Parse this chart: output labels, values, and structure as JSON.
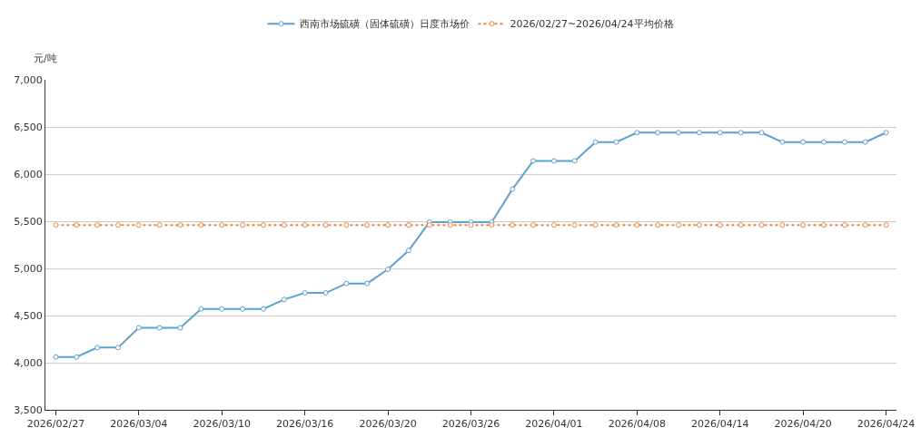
{
  "chart_data": {
    "type": "line",
    "ylabel": "元/吨",
    "categories": [
      "2026/02/27",
      null,
      null,
      null,
      "2026/03/04",
      null,
      null,
      null,
      "2026/03/10",
      null,
      null,
      null,
      "2026/03/16",
      null,
      null,
      null,
      "2026/03/20",
      null,
      null,
      null,
      "2026/03/26",
      null,
      null,
      null,
      "2026/04/01",
      null,
      null,
      null,
      "2026/04/08",
      null,
      null,
      null,
      "2026/04/14",
      null,
      null,
      null,
      "2026/04/20",
      null,
      null,
      null,
      "2026/04/24"
    ],
    "series": [
      {
        "name": "西南市场硫磺（固体硫磺）日度市场价",
        "color": "#5ba3cc",
        "line_style": "solid",
        "values": [
          4060,
          4060,
          4160,
          4160,
          4370,
          4370,
          4370,
          4570,
          4570,
          4570,
          4570,
          4670,
          4740,
          4740,
          4840,
          4840,
          4990,
          5190,
          5490,
          5490,
          5490,
          5490,
          5840,
          6140,
          6140,
          6140,
          6340,
          6340,
          6440,
          6440,
          6440,
          6440,
          6440,
          6440,
          6440,
          6340,
          6340,
          6340,
          6340,
          6340,
          6440
        ]
      },
      {
        "name": "2026/02/27~2026/04/24平均价格",
        "color": "#e8883f",
        "line_style": "dotted",
        "values": [
          5460,
          5460,
          5460,
          5460,
          5460,
          5460,
          5460,
          5460,
          5460,
          5460,
          5460,
          5460,
          5460,
          5460,
          5460,
          5460,
          5460,
          5460,
          5460,
          5460,
          5460,
          5460,
          5460,
          5460,
          5460,
          5460,
          5460,
          5460,
          5460,
          5460,
          5460,
          5460,
          5460,
          5460,
          5460,
          5460,
          5460,
          5460,
          5460,
          5460,
          5460
        ]
      }
    ],
    "ylim": [
      3500,
      7000
    ],
    "yticks": [
      {
        "value": 3500,
        "label": "3,500"
      },
      {
        "value": 4000,
        "label": "4,000"
      },
      {
        "value": 4500,
        "label": "4,500"
      },
      {
        "value": 5000,
        "label": "5,000"
      },
      {
        "value": 5500,
        "label": "5,500"
      },
      {
        "value": 6000,
        "label": "6,000"
      },
      {
        "value": 6500,
        "label": "6,500"
      },
      {
        "value": 7000,
        "label": "7,000"
      }
    ],
    "grid": "y",
    "legend": "top",
    "marker": "circle"
  }
}
